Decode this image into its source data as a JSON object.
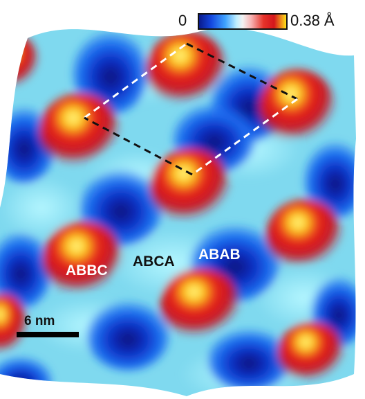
{
  "colorbar": {
    "min_label": "0",
    "max_label": "0.38 Å",
    "colormap": [
      "#0a1a8c",
      "#1448e0",
      "#3fa2ff",
      "#bfeeff",
      "#f2f2f2",
      "#f7b2b2",
      "#e6332a",
      "#d4161c",
      "#ffe21a"
    ]
  },
  "labels": {
    "abbc": "ABBC",
    "abca": "ABCA",
    "abab": "ABAB"
  },
  "scale_bar": {
    "label": "6 nm"
  },
  "unit_cell": {
    "line_colors": [
      "#ffffff",
      "#111111"
    ]
  }
}
